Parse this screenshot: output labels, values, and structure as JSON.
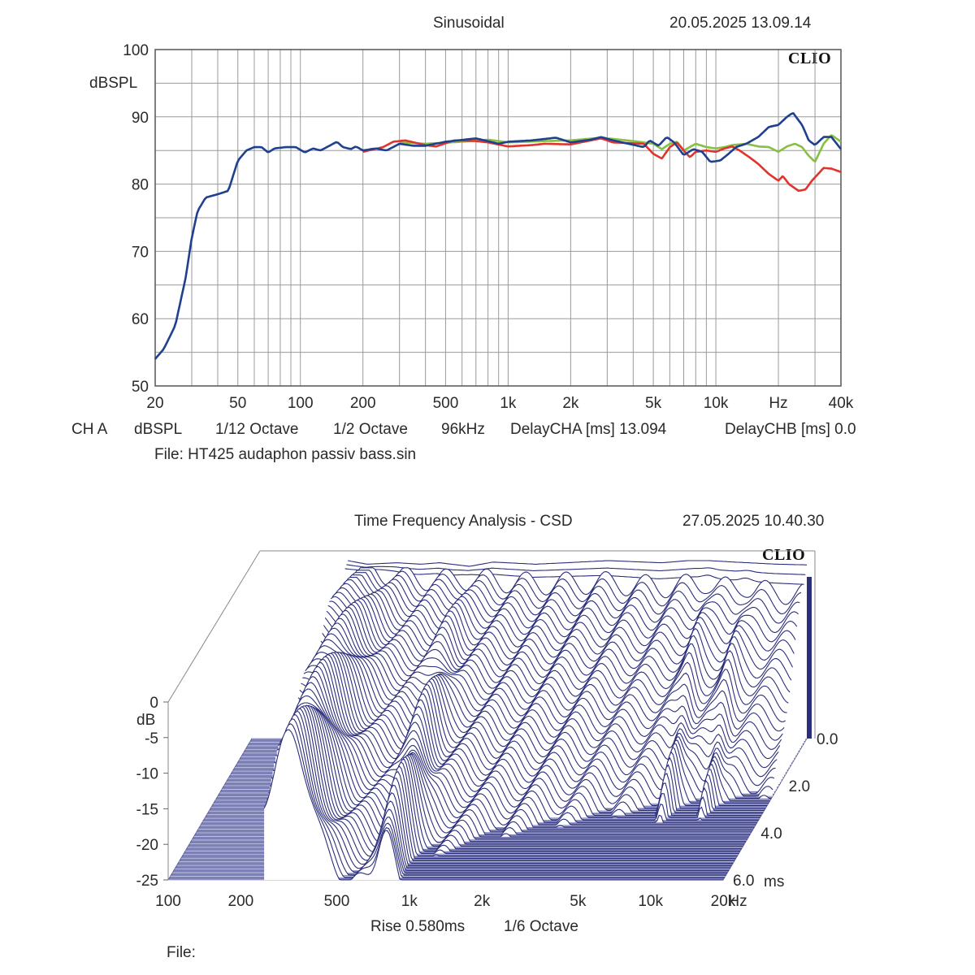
{
  "chart_data": [
    {
      "type": "line",
      "title": "Sinusoidal",
      "timestamp": "20.05.2025 13.09.14",
      "logo": "CLIO",
      "ylabel": "dBSPL",
      "xscale": "log",
      "xlim": [
        20,
        40000
      ],
      "ylim": [
        50,
        100
      ],
      "y_ticks": [
        "100",
        "90",
        "80",
        "70",
        "60",
        "50"
      ],
      "x_ticks": [
        {
          "v": 20,
          "label": "20"
        },
        {
          "v": 50,
          "label": "50"
        },
        {
          "v": 100,
          "label": "100"
        },
        {
          "v": 200,
          "label": "200"
        },
        {
          "v": 500,
          "label": "500"
        },
        {
          "v": 1000,
          "label": "1k"
        },
        {
          "v": 2000,
          "label": "2k"
        },
        {
          "v": 5000,
          "label": "5k"
        },
        {
          "v": 10000,
          "label": "10k"
        },
        {
          "v": 20000,
          "label": "Hz"
        },
        {
          "v": 40000,
          "label": "40k"
        }
      ],
      "info_line": [
        "CH A",
        "dBSPL",
        "1/12 Octave",
        "1/2 Octave",
        "96kHz",
        "DelayCHA [ms] 13.094",
        "DelayCHB [ms] 0.0"
      ],
      "file": "File: HT425 audaphon passiv bass.sin",
      "series": [
        {
          "name": "blue",
          "color": "#1f3f8f",
          "points": [
            [
              20,
              54
            ],
            [
              22,
              55.5
            ],
            [
              25,
              59
            ],
            [
              28,
              66
            ],
            [
              30,
              72
            ],
            [
              32,
              76
            ],
            [
              35,
              78
            ],
            [
              40,
              78.5
            ],
            [
              45,
              79
            ],
            [
              50,
              83.5
            ],
            [
              55,
              85
            ],
            [
              60,
              85.5
            ],
            [
              65,
              85.5
            ],
            [
              70,
              84.7
            ],
            [
              75,
              85.3
            ],
            [
              85,
              85.5
            ],
            [
              95,
              85.5
            ],
            [
              105,
              84.7
            ],
            [
              115,
              85.3
            ],
            [
              125,
              85
            ],
            [
              140,
              85.8
            ],
            [
              150,
              86.3
            ],
            [
              160,
              85.5
            ],
            [
              175,
              85.2
            ],
            [
              185,
              85.6
            ],
            [
              200,
              85
            ],
            [
              230,
              85.3
            ],
            [
              260,
              85
            ],
            [
              300,
              86
            ],
            [
              350,
              85.7
            ],
            [
              400,
              85.7
            ],
            [
              500,
              86.3
            ],
            [
              700,
              86.8
            ],
            [
              900,
              86
            ],
            [
              1000,
              86.3
            ],
            [
              1300,
              86.5
            ],
            [
              1700,
              86.9
            ],
            [
              2000,
              86.2
            ],
            [
              2500,
              86.6
            ],
            [
              2800,
              87
            ],
            [
              3200,
              86.5
            ],
            [
              4500,
              85.5
            ],
            [
              4800,
              86.5
            ],
            [
              5300,
              85.7
            ],
            [
              5800,
              87
            ],
            [
              6300,
              86.2
            ],
            [
              7000,
              84.3
            ],
            [
              7800,
              85.2
            ],
            [
              8600,
              84.8
            ],
            [
              9400,
              83.3
            ],
            [
              10500,
              83.5
            ],
            [
              11500,
              84.5
            ],
            [
              12500,
              85.5
            ],
            [
              14000,
              86
            ],
            [
              16000,
              87
            ],
            [
              18000,
              88.5
            ],
            [
              20000,
              88.8
            ],
            [
              22000,
              90
            ],
            [
              23500,
              90.6
            ],
            [
              26000,
              88.8
            ],
            [
              28000,
              86.5
            ],
            [
              30000,
              85.8
            ],
            [
              33000,
              87
            ],
            [
              36000,
              87
            ],
            [
              40000,
              85.2
            ]
          ]
        },
        {
          "name": "red",
          "color": "#e0342c",
          "points": [
            [
              200,
              84.8
            ],
            [
              250,
              85.5
            ],
            [
              280,
              86.3
            ],
            [
              320,
              86.5
            ],
            [
              400,
              85.8
            ],
            [
              450,
              85.6
            ],
            [
              550,
              86.5
            ],
            [
              700,
              86.4
            ],
            [
              800,
              86.2
            ],
            [
              1000,
              85.6
            ],
            [
              1300,
              85.8
            ],
            [
              1500,
              86
            ],
            [
              2000,
              85.9
            ],
            [
              2500,
              86.5
            ],
            [
              2800,
              86.8
            ],
            [
              3200,
              86.2
            ],
            [
              4500,
              86
            ],
            [
              5000,
              84.5
            ],
            [
              5500,
              83.8
            ],
            [
              6000,
              85.5
            ],
            [
              6500,
              86.2
            ],
            [
              7000,
              85
            ],
            [
              7500,
              84
            ],
            [
              8000,
              84.8
            ],
            [
              9000,
              85
            ],
            [
              10000,
              84.8
            ],
            [
              11000,
              85.3
            ],
            [
              12000,
              85.6
            ],
            [
              13000,
              85
            ],
            [
              14500,
              84
            ],
            [
              16000,
              83
            ],
            [
              18000,
              81.5
            ],
            [
              20000,
              80.5
            ],
            [
              21000,
              81.2
            ],
            [
              22500,
              80
            ],
            [
              25000,
              79
            ],
            [
              27000,
              79.2
            ],
            [
              29000,
              80.5
            ],
            [
              33000,
              82.4
            ],
            [
              36000,
              82.3
            ],
            [
              40000,
              81.8
            ]
          ]
        },
        {
          "name": "green",
          "color": "#86c040",
          "points": [
            [
              300,
              86.2
            ],
            [
              400,
              86
            ],
            [
              600,
              86.3
            ],
            [
              800,
              86.6
            ],
            [
              1000,
              86.2
            ],
            [
              1500,
              86.4
            ],
            [
              2000,
              86.5
            ],
            [
              2800,
              86.9
            ],
            [
              4000,
              86.4
            ],
            [
              5000,
              86
            ],
            [
              5500,
              85.2
            ],
            [
              6000,
              86
            ],
            [
              6500,
              86.3
            ],
            [
              7000,
              85
            ],
            [
              8000,
              86
            ],
            [
              9000,
              85.5
            ],
            [
              10000,
              85.3
            ],
            [
              11000,
              85.5
            ],
            [
              12000,
              85.8
            ],
            [
              14000,
              86
            ],
            [
              16000,
              85.6
            ],
            [
              18000,
              85.5
            ],
            [
              20000,
              84.8
            ],
            [
              22000,
              85.6
            ],
            [
              24000,
              86
            ],
            [
              26000,
              85.5
            ],
            [
              28000,
              84.2
            ],
            [
              30000,
              83.3
            ],
            [
              33000,
              86
            ],
            [
              36000,
              87.3
            ],
            [
              40000,
              86.3
            ]
          ]
        }
      ]
    },
    {
      "type": "waterfall",
      "title": "Time Frequency Analysis - CSD",
      "timestamp": "27.05.2025 10.40.30",
      "logo": "CLIO",
      "ylabel": "dB",
      "xscale": "log",
      "xlim": [
        100,
        20000
      ],
      "zlim": [
        -25,
        0
      ],
      "time_range_ms": [
        0.0,
        6.0
      ],
      "slices": 60,
      "z_ticks": [
        "0",
        "-5",
        "-10",
        "-15",
        "-20",
        "-25"
      ],
      "x_ticks": [
        {
          "v": 100,
          "label": "100"
        },
        {
          "v": 200,
          "label": "200"
        },
        {
          "v": 500,
          "label": "500"
        },
        {
          "v": 1000,
          "label": "1k"
        },
        {
          "v": 2000,
          "label": "2k"
        },
        {
          "v": 5000,
          "label": "5k"
        },
        {
          "v": 10000,
          "label": "10k"
        },
        {
          "v": 20000,
          "label": "20k"
        }
      ],
      "x_unit": "Hz",
      "t_ticks": [
        "0.0",
        "2.0",
        "4.0",
        "6.0"
      ],
      "t_unit": "ms",
      "rise": "Rise 0.580ms",
      "smoothing": "1/6 Octave",
      "file": "File:",
      "start_profile": [
        [
          250,
          0
        ],
        [
          300,
          -0.5
        ],
        [
          400,
          -0.3
        ],
        [
          500,
          -0.5
        ],
        [
          600,
          -0.3
        ],
        [
          800,
          -0.8
        ],
        [
          1000,
          -0.2
        ],
        [
          1500,
          -0.5
        ],
        [
          2000,
          -0.3
        ],
        [
          3000,
          0
        ],
        [
          5000,
          -0.3
        ],
        [
          7000,
          0.1
        ],
        [
          10000,
          -0.2
        ],
        [
          15000,
          -0.5
        ],
        [
          20000,
          -0.6
        ]
      ],
      "color": "#2b2e7a",
      "floor_color": "#7d80b4"
    }
  ]
}
